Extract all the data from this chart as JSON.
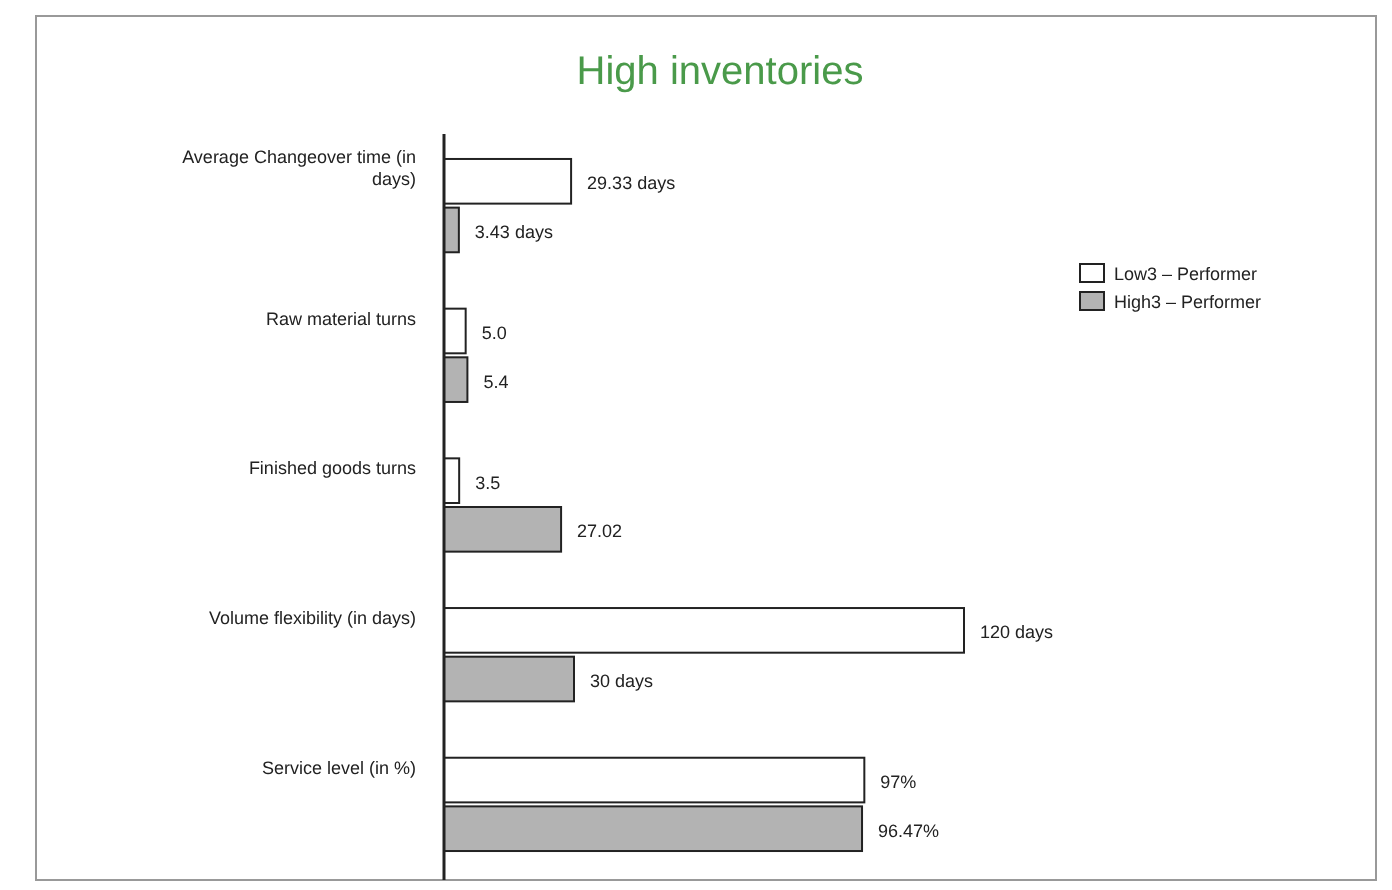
{
  "chart_data": {
    "type": "bar",
    "orientation": "horizontal",
    "title": "High inventories",
    "categories": [
      "Average Changeover time (in days)",
      "Raw material turns",
      "Finished goods turns",
      "Volume flexibility (in days)",
      "Service level (in %)"
    ],
    "series": [
      {
        "name": "Low3 – Performer",
        "color": "#ffffff",
        "values": [
          29.33,
          5.0,
          3.5,
          120,
          97
        ],
        "value_labels": [
          "29.33 days",
          "5.0",
          "3.5",
          "120 days",
          "97%"
        ]
      },
      {
        "name": "High3 – Performer",
        "color": "#b3b3b3",
        "values": [
          3.43,
          5.4,
          27.02,
          30,
          96.47
        ],
        "value_labels": [
          "3.43 days",
          "5.4",
          "27.02",
          "30 days",
          "96.47%"
        ]
      }
    ],
    "tick_labels": "y",
    "legend": "right"
  }
}
